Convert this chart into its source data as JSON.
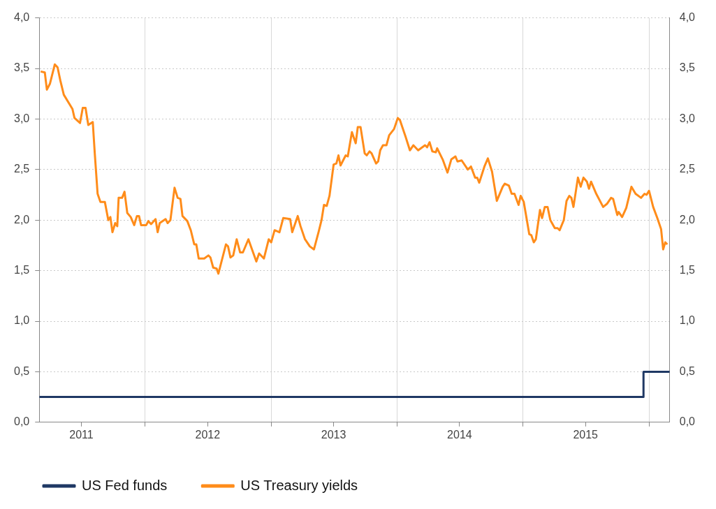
{
  "chart_data": {
    "type": "line",
    "xlim": [
      "2011-03-01",
      "2016-03-01"
    ],
    "xticks": [
      {
        "value": "2011-07-01",
        "label": "2011"
      },
      {
        "value": "2012-01-01",
        "label": null
      },
      {
        "value": "2012-07-01",
        "label": "2012"
      },
      {
        "value": "2013-01-01",
        "label": null
      },
      {
        "value": "2013-07-01",
        "label": "2013"
      },
      {
        "value": "2014-01-01",
        "label": null
      },
      {
        "value": "2014-07-01",
        "label": "2014"
      },
      {
        "value": "2015-01-01",
        "label": null
      },
      {
        "value": "2015-07-01",
        "label": "2015"
      },
      {
        "value": "2016-01-01",
        "label": null
      }
    ],
    "ylim": [
      0,
      4
    ],
    "yticks": [
      {
        "value": 0,
        "label": "0,0"
      },
      {
        "value": 0.5,
        "label": "0,5"
      },
      {
        "value": 1,
        "label": "1,0"
      },
      {
        "value": 1.5,
        "label": "1,5"
      },
      {
        "value": 2,
        "label": "2,0"
      },
      {
        "value": 2.5,
        "label": "2,5"
      },
      {
        "value": 3,
        "label": "3,0"
      },
      {
        "value": 3.5,
        "label": "3,5"
      },
      {
        "value": 4,
        "label": "4,0"
      }
    ],
    "y2lim": [
      0,
      4
    ],
    "y2ticks": [
      {
        "value": 0,
        "label": "0,0"
      },
      {
        "value": 0.5,
        "label": "0,5"
      },
      {
        "value": 1,
        "label": "1,0"
      },
      {
        "value": 1.5,
        "label": "1,5"
      },
      {
        "value": 2,
        "label": "2,0"
      },
      {
        "value": 2.5,
        "label": "2,5"
      },
      {
        "value": 3,
        "label": "3,0"
      },
      {
        "value": 3.5,
        "label": "3,5"
      },
      {
        "value": 4,
        "label": "4,0"
      }
    ],
    "grid": true,
    "legend": "bottom left",
    "series": [
      {
        "name": "US Fed funds",
        "type": "step",
        "color": "#1f3864",
        "x": [
          "2011-03-01",
          "2015-12-16",
          "2016-03-01"
        ],
        "values": [
          0.25,
          0.5,
          0.5
        ]
      },
      {
        "name": "US Treasury yields",
        "type": "line",
        "color": "#ff8c1a",
        "x": [
          "2011-03-05",
          "2011-03-17",
          "2011-03-23",
          "2011-04-01",
          "2011-04-15",
          "2011-04-23",
          "2011-05-01",
          "2011-05-11",
          "2011-06-05",
          "2011-06-11",
          "2011-06-27",
          "2011-07-05",
          "2011-07-13",
          "2011-07-21",
          "2011-08-03",
          "2011-08-09",
          "2011-08-17",
          "2011-08-25",
          "2011-09-07",
          "2011-09-17",
          "2011-09-23",
          "2011-09-29",
          "2011-10-07",
          "2011-10-13",
          "2011-10-17",
          "2011-10-27",
          "2011-11-03",
          "2011-11-11",
          "2011-11-21",
          "2011-12-01",
          "2011-12-09",
          "2011-12-15",
          "2011-12-21",
          "2012-01-05",
          "2012-01-11",
          "2012-01-19",
          "2012-02-01",
          "2012-02-07",
          "2012-02-13",
          "2012-03-01",
          "2012-03-07",
          "2012-03-15",
          "2012-03-27",
          "2012-04-05",
          "2012-04-13",
          "2012-04-19",
          "2012-05-03",
          "2012-05-13",
          "2012-05-23",
          "2012-05-29",
          "2012-06-05",
          "2012-06-21",
          "2012-07-03",
          "2012-07-09",
          "2012-07-17",
          "2012-07-27",
          "2012-08-01",
          "2012-08-23",
          "2012-08-29",
          "2012-09-05",
          "2012-09-13",
          "2012-09-23",
          "2012-10-03",
          "2012-10-11",
          "2012-10-27",
          "2012-11-19",
          "2012-11-27",
          "2012-12-11",
          "2012-12-25",
          "2013-01-01",
          "2013-01-11",
          "2013-01-25",
          "2013-02-05",
          "2013-02-25",
          "2013-03-03",
          "2013-03-19",
          "2013-03-27",
          "2013-04-09",
          "2013-04-23",
          "2013-05-05",
          "2013-05-19",
          "2013-05-27",
          "2013-06-03",
          "2013-06-11",
          "2013-06-19",
          "2013-07-01",
          "2013-07-09",
          "2013-07-15",
          "2013-07-21",
          "2013-08-05",
          "2013-08-11",
          "2013-08-23",
          "2013-09-03",
          "2013-09-09",
          "2013-09-17",
          "2013-09-29",
          "2013-10-05",
          "2013-10-13",
          "2013-10-19",
          "2013-11-01",
          "2013-11-07",
          "2013-11-13",
          "2013-11-21",
          "2013-12-01",
          "2013-12-09",
          "2013-12-23",
          "2014-01-03",
          "2014-01-09",
          "2014-01-21",
          "2014-01-25",
          "2014-02-07",
          "2014-02-17",
          "2014-03-03",
          "2014-03-23",
          "2014-03-29",
          "2014-04-05",
          "2014-04-13",
          "2014-04-23",
          "2014-04-27",
          "2014-05-13",
          "2014-05-27",
          "2014-06-07",
          "2014-06-19",
          "2014-06-25",
          "2014-07-07",
          "2014-07-25",
          "2014-08-03",
          "2014-08-15",
          "2014-08-21",
          "2014-08-27",
          "2014-09-11",
          "2014-09-21",
          "2014-10-03",
          "2014-10-17",
          "2014-11-03",
          "2014-11-09",
          "2014-11-21",
          "2014-11-29",
          "2014-12-07",
          "2014-12-19",
          "2014-12-25",
          "2015-01-03",
          "2015-01-19",
          "2015-01-25",
          "2015-02-01",
          "2015-02-07",
          "2015-02-19",
          "2015-02-25",
          "2015-03-05",
          "2015-03-13",
          "2015-03-21",
          "2015-04-03",
          "2015-04-11",
          "2015-04-17",
          "2015-04-29",
          "2015-05-07",
          "2015-05-15",
          "2015-05-21",
          "2015-05-27",
          "2015-06-09",
          "2015-06-17",
          "2015-06-25",
          "2015-07-05",
          "2015-07-11",
          "2015-07-17",
          "2015-08-01",
          "2015-08-21",
          "2015-09-01",
          "2015-09-13",
          "2015-09-19",
          "2015-10-01",
          "2015-10-05",
          "2015-10-15",
          "2015-10-27",
          "2015-11-11",
          "2015-11-23",
          "2015-12-09",
          "2015-12-19",
          "2015-12-25",
          "2016-01-01",
          "2016-01-13",
          "2016-01-25",
          "2016-02-05",
          "2016-02-11",
          "2016-02-17",
          "2016-02-23"
        ],
        "values": [
          3.47,
          3.46,
          3.29,
          3.35,
          3.54,
          3.51,
          3.38,
          3.24,
          3.1,
          3.01,
          2.96,
          3.11,
          3.11,
          2.94,
          2.97,
          2.65,
          2.26,
          2.18,
          2.18,
          2.0,
          2.03,
          1.88,
          1.97,
          1.94,
          2.22,
          2.22,
          2.28,
          2.07,
          2.03,
          1.95,
          2.04,
          2.04,
          1.95,
          1.95,
          1.99,
          1.96,
          2.01,
          1.88,
          1.97,
          2.01,
          1.97,
          2.0,
          2.32,
          2.22,
          2.21,
          2.04,
          1.99,
          1.9,
          1.76,
          1.76,
          1.62,
          1.62,
          1.65,
          1.63,
          1.53,
          1.52,
          1.47,
          1.76,
          1.74,
          1.63,
          1.65,
          1.81,
          1.68,
          1.68,
          1.81,
          1.59,
          1.67,
          1.62,
          1.81,
          1.78,
          1.9,
          1.88,
          2.02,
          2.01,
          1.88,
          2.04,
          1.94,
          1.81,
          1.74,
          1.71,
          1.89,
          2.0,
          2.15,
          2.14,
          2.24,
          2.55,
          2.56,
          2.64,
          2.54,
          2.64,
          2.63,
          2.87,
          2.76,
          2.92,
          2.92,
          2.66,
          2.64,
          2.68,
          2.66,
          2.56,
          2.58,
          2.69,
          2.74,
          2.74,
          2.84,
          2.9,
          3.01,
          2.99,
          2.87,
          2.83,
          2.69,
          2.74,
          2.69,
          2.74,
          2.72,
          2.77,
          2.68,
          2.67,
          2.71,
          2.6,
          2.47,
          2.6,
          2.63,
          2.58,
          2.59,
          2.5,
          2.53,
          2.42,
          2.42,
          2.37,
          2.53,
          2.61,
          2.48,
          2.19,
          2.33,
          2.36,
          2.34,
          2.26,
          2.26,
          2.15,
          2.24,
          2.18,
          1.86,
          1.85,
          1.78,
          1.81,
          2.1,
          2.02,
          2.13,
          2.13,
          2.0,
          1.92,
          1.92,
          1.9,
          2.0,
          2.19,
          2.24,
          2.22,
          2.13,
          2.42,
          2.33,
          2.42,
          2.38,
          2.31,
          2.38,
          2.26,
          2.13,
          2.16,
          2.22,
          2.21,
          2.05,
          2.08,
          2.03,
          2.12,
          2.33,
          2.26,
          2.22,
          2.26,
          2.25,
          2.29,
          2.13,
          2.02,
          1.91,
          1.71,
          1.78,
          1.76
        ]
      }
    ]
  }
}
